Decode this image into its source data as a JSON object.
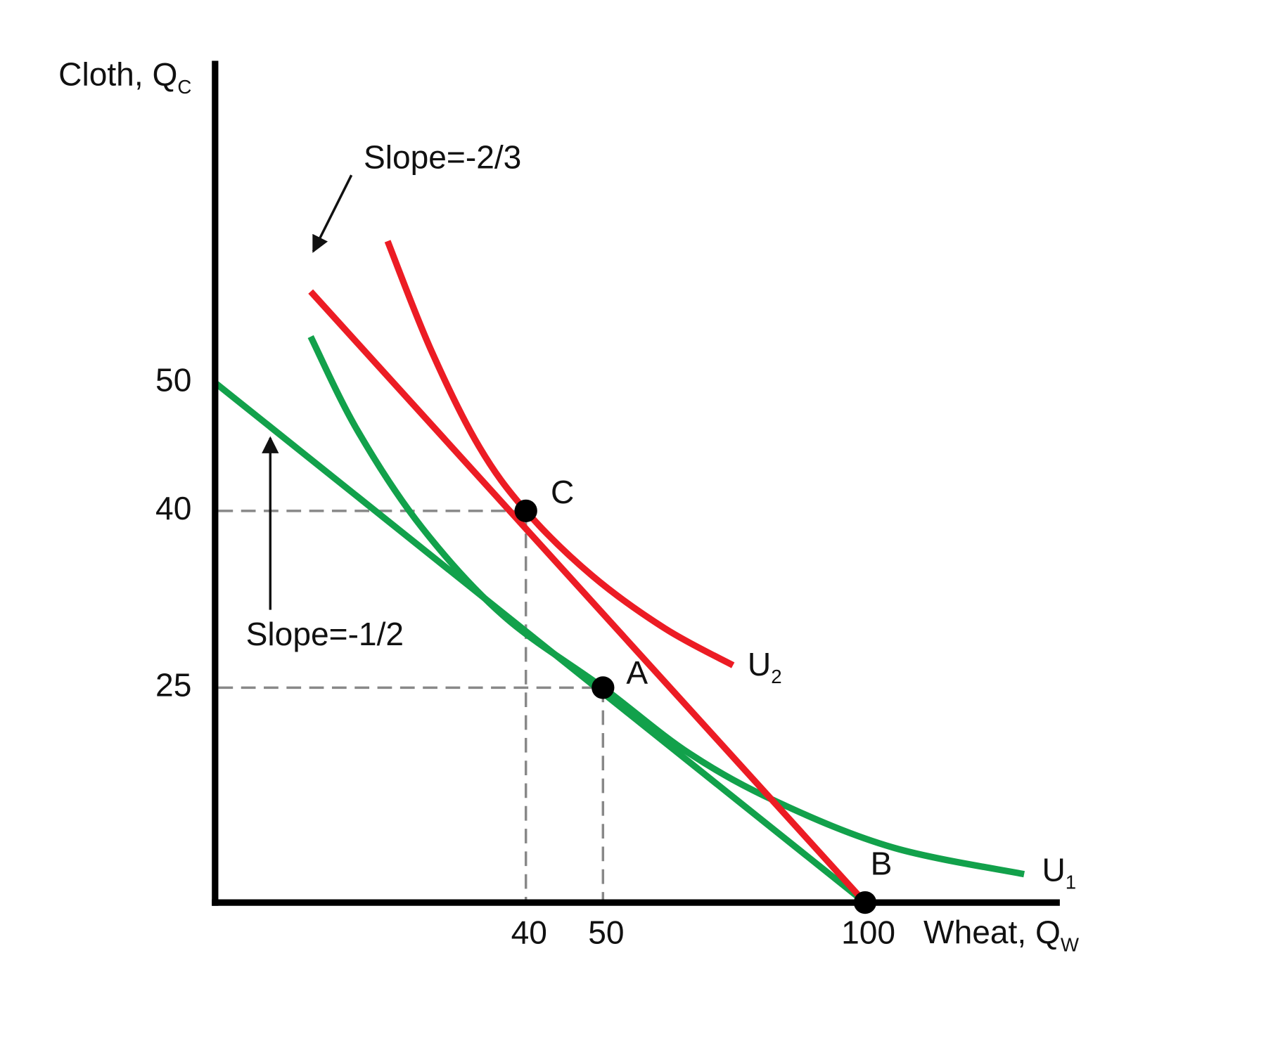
{
  "chart_data": {
    "type": "line",
    "x_label": "Wheat, Q",
    "x_label_sub": "W",
    "y_label": "Cloth, Q",
    "y_label_sub": "C",
    "xlim": [
      0,
      130
    ],
    "ylim": [
      0,
      80
    ],
    "xticks": [
      40,
      50,
      100
    ],
    "yticks": [
      25,
      40,
      50
    ],
    "series": [
      {
        "name": "U",
        "name_sub": "1",
        "color": "#12a14b",
        "smooth": true,
        "x": [
          12.3,
          18.3,
          26.6,
          37.1,
          50,
          66.6,
          83.6,
          104.3,
          124.5
        ],
        "values": [
          54.3,
          46.3,
          38.6,
          31.1,
          25,
          17.3,
          11.6,
          6.4,
          3.3
        ]
      },
      {
        "name": "U",
        "name_sub": "2",
        "color": "#ec1c24",
        "smooth": true,
        "x": [
          22.2,
          27.7,
          33.9,
          40,
          48.6,
          61.9,
          74.8
        ],
        "values": [
          63.2,
          53.2,
          45.1,
          40,
          34.5,
          30.0,
          26.9
        ]
      },
      {
        "color": "#12a14b",
        "smooth": false,
        "x": [
          0,
          100
        ],
        "values": [
          50,
          0
        ]
      },
      {
        "color": "#ec1c24",
        "smooth": false,
        "x": [
          12.3,
          100
        ],
        "values": [
          58.5,
          0
        ]
      }
    ],
    "points": [
      {
        "label": "C",
        "x": 40,
        "y": 40
      },
      {
        "label": "A",
        "x": 50,
        "y": 25
      },
      {
        "label": "B",
        "x": 100,
        "y": 0
      }
    ],
    "annotations": [
      "Slope=-2/3",
      "Slope=-1/2"
    ]
  }
}
